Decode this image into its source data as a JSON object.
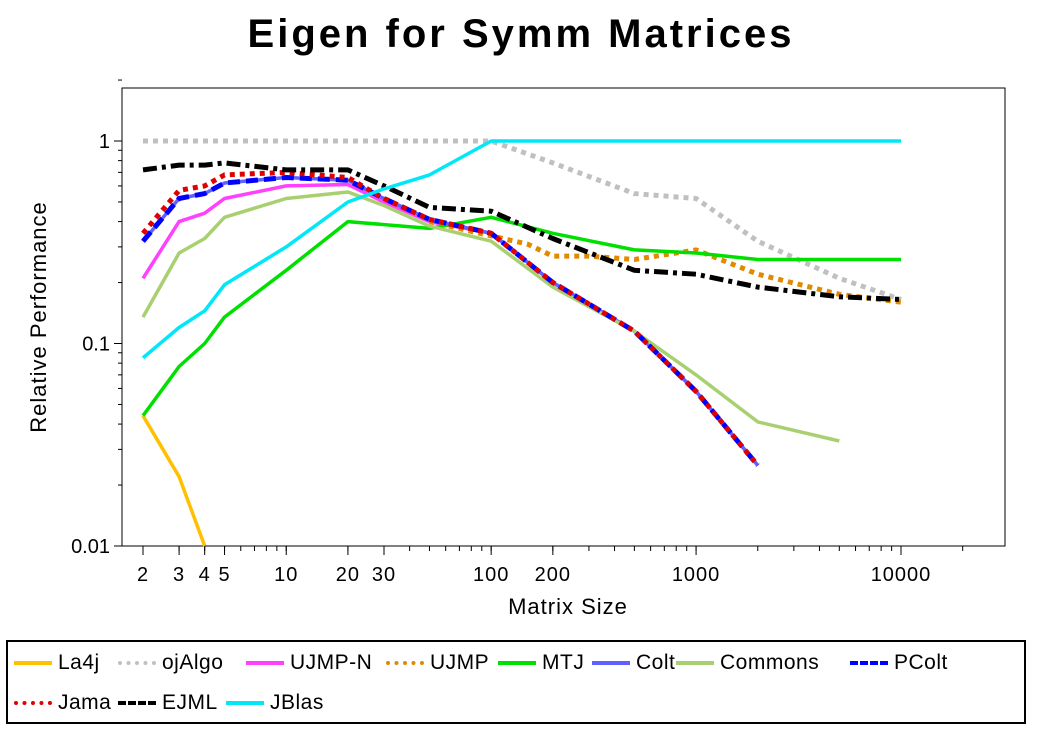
{
  "chart_data": {
    "type": "line",
    "title": "Eigen for Symm Matrices",
    "xlabel": "Matrix Size",
    "ylabel": "Relative Performance",
    "x_scale": "log",
    "y_scale": "log",
    "xlim": [
      1.6,
      30000
    ],
    "ylim": [
      0.01,
      2
    ],
    "x_ticks": [
      2,
      3,
      4,
      5,
      10,
      20,
      30,
      100,
      200,
      1000,
      10000
    ],
    "x_tick_labels": [
      "2",
      "3",
      "4",
      "5",
      "10",
      "20",
      "30",
      "100",
      "200",
      "1000",
      "10000"
    ],
    "y_ticks": [
      0.01,
      0.1,
      1
    ],
    "y_tick_labels": [
      "0.01",
      "0.1",
      "1"
    ],
    "grid": false,
    "legend_position": "bottom",
    "series": [
      {
        "name": "La4j",
        "color": "#ffc000",
        "dash": "solid",
        "x": [
          2,
          3,
          4
        ],
        "y": [
          0.044,
          0.022,
          0.01
        ]
      },
      {
        "name": "ojAlgo",
        "color": "#c0c0c0",
        "dash": "dot",
        "x": [
          2,
          3,
          4,
          5,
          10,
          20,
          30,
          50,
          100,
          200,
          500,
          1000,
          2000,
          5000,
          10000
        ],
        "y": [
          1.0,
          1.0,
          1.0,
          1.0,
          1.0,
          1.0,
          1.0,
          1.0,
          1.0,
          0.78,
          0.55,
          0.52,
          0.32,
          0.21,
          0.165
        ]
      },
      {
        "name": "UJMP-N",
        "color": "#ff40ff",
        "dash": "solid",
        "x": [
          2,
          3,
          4,
          5,
          10,
          20,
          30,
          50,
          100,
          200,
          500,
          1000,
          2000
        ],
        "y": [
          0.21,
          0.4,
          0.44,
          0.52,
          0.6,
          0.61,
          0.5,
          0.4,
          0.35,
          0.2,
          0.115,
          0.058,
          0.025
        ]
      },
      {
        "name": "UJMP",
        "color": "#e08a00",
        "dash": "dot",
        "x": [
          50,
          100,
          150,
          200,
          300,
          500,
          1000,
          2000,
          5000,
          10000
        ],
        "y": [
          0.4,
          0.34,
          0.31,
          0.27,
          0.27,
          0.26,
          0.29,
          0.22,
          0.175,
          0.16
        ]
      },
      {
        "name": "MTJ",
        "color": "#00e000",
        "dash": "solid",
        "x": [
          2,
          3,
          4,
          5,
          10,
          20,
          50,
          100,
          200,
          500,
          1000,
          2000,
          5000,
          10000
        ],
        "y": [
          0.044,
          0.077,
          0.1,
          0.135,
          0.23,
          0.4,
          0.37,
          0.42,
          0.35,
          0.29,
          0.28,
          0.26,
          0.26,
          0.26
        ]
      },
      {
        "name": "Colt",
        "color": "#6060ff",
        "dash": "solid",
        "x": [
          2,
          3,
          4,
          5,
          10,
          20,
          30,
          50,
          100,
          200,
          500,
          1000,
          2000
        ],
        "y": [
          0.32,
          0.52,
          0.55,
          0.62,
          0.66,
          0.64,
          0.52,
          0.41,
          0.35,
          0.2,
          0.115,
          0.058,
          0.025
        ]
      },
      {
        "name": "Commons",
        "color": "#a8d070",
        "dash": "solid",
        "x": [
          2,
          3,
          4,
          5,
          10,
          20,
          30,
          50,
          100,
          200,
          500,
          1000,
          2000,
          5000
        ],
        "y": [
          0.135,
          0.28,
          0.33,
          0.42,
          0.52,
          0.56,
          0.48,
          0.38,
          0.32,
          0.19,
          0.115,
          0.07,
          0.041,
          0.033
        ]
      },
      {
        "name": "PColt",
        "color": "#0000ff",
        "dash": "dash",
        "x": [
          2,
          3,
          4,
          5,
          10,
          20,
          30,
          50,
          100,
          200,
          500,
          1000,
          2000
        ],
        "y": [
          0.32,
          0.52,
          0.55,
          0.62,
          0.66,
          0.64,
          0.52,
          0.41,
          0.35,
          0.2,
          0.115,
          0.058,
          0.025
        ]
      },
      {
        "name": "Jama",
        "color": "#e00000",
        "dash": "dot",
        "x": [
          2,
          3,
          4,
          5,
          10,
          20,
          30,
          50,
          100,
          200,
          500,
          1000,
          2000
        ],
        "y": [
          0.35,
          0.57,
          0.6,
          0.68,
          0.7,
          0.66,
          0.52,
          0.41,
          0.35,
          0.2,
          0.115,
          0.058,
          0.025
        ]
      },
      {
        "name": "EJML",
        "color": "#000000",
        "dash": "dashdot",
        "x": [
          2,
          3,
          4,
          5,
          10,
          20,
          30,
          50,
          100,
          200,
          500,
          1000,
          2000,
          5000,
          10000
        ],
        "y": [
          0.72,
          0.76,
          0.76,
          0.78,
          0.72,
          0.72,
          0.6,
          0.47,
          0.45,
          0.33,
          0.23,
          0.22,
          0.19,
          0.17,
          0.165
        ]
      },
      {
        "name": "JBlas",
        "color": "#00e8f8",
        "dash": "solid",
        "x": [
          2,
          3,
          4,
          5,
          10,
          20,
          30,
          50,
          100,
          200,
          500,
          1000,
          2000,
          5000,
          10000
        ],
        "y": [
          0.085,
          0.12,
          0.145,
          0.195,
          0.3,
          0.5,
          0.58,
          0.68,
          1.0,
          1.0,
          1.0,
          1.0,
          1.0,
          1.0,
          1.0
        ]
      }
    ]
  }
}
